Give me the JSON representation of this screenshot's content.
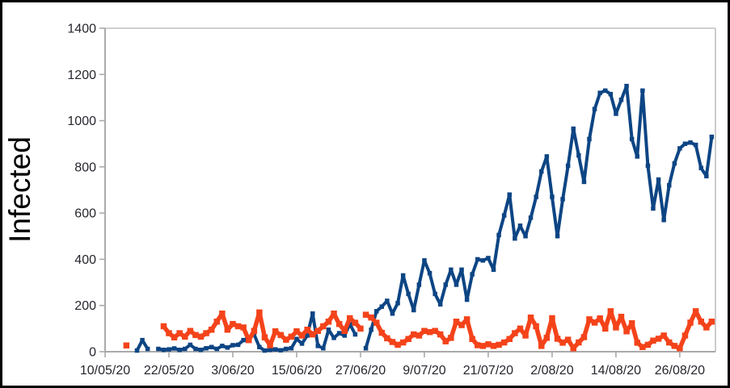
{
  "figure": {
    "background": "#ffffff",
    "border_color": "#000000"
  },
  "chart_data": {
    "type": "line",
    "title": "",
    "xlabel": "",
    "ylabel": "Infected",
    "ylim": [
      0,
      1400
    ],
    "grid": "top border line only, no interior gridlines",
    "legend": "none",
    "x_unit": "date (daily points), day index measured from 10/05/20",
    "y_ticks": [
      0,
      200,
      400,
      600,
      800,
      1000,
      1200,
      1400
    ],
    "x_ticks": [
      {
        "day": 0,
        "label": "10/05/20"
      },
      {
        "day": 12,
        "label": "22/05/20"
      },
      {
        "day": 24,
        "label": "3/06/20"
      },
      {
        "day": 36,
        "label": "15/06/20"
      },
      {
        "day": 48,
        "label": "27/06/20"
      },
      {
        "day": 60,
        "label": "9/07/20"
      },
      {
        "day": 72,
        "label": "21/07/20"
      },
      {
        "day": 84,
        "label": "2/08/20"
      },
      {
        "day": 96,
        "label": "14/08/20"
      },
      {
        "day": 108,
        "label": "26/08/20"
      }
    ],
    "x_domain_days": [
      0,
      114.7
    ],
    "series": [
      {
        "name": "series-blue",
        "color": "#0d4584",
        "line_width": 4,
        "marker_size": 5.5,
        "segments": [
          [
            [
              6,
              5
            ],
            [
              7,
              50
            ],
            [
              8,
              12
            ]
          ],
          [
            [
              10,
              12
            ],
            [
              11,
              8
            ],
            [
              12,
              10
            ],
            [
              13,
              14
            ],
            [
              14,
              8
            ],
            [
              15,
              12
            ],
            [
              16,
              30
            ],
            [
              17,
              12
            ],
            [
              18,
              8
            ],
            [
              19,
              15
            ],
            [
              20,
              20
            ],
            [
              21,
              12
            ],
            [
              22,
              25
            ],
            [
              23,
              18
            ],
            [
              24,
              28
            ],
            [
              25,
              30
            ],
            [
              26,
              50
            ],
            [
              27,
              60
            ],
            [
              28,
              75
            ],
            [
              29,
              20
            ],
            [
              30,
              5
            ],
            [
              31,
              8
            ],
            [
              32,
              10
            ],
            [
              33,
              6
            ],
            [
              34,
              12
            ],
            [
              35,
              15
            ],
            [
              36,
              55
            ],
            [
              37,
              35
            ],
            [
              38,
              70
            ],
            [
              39,
              165
            ],
            [
              40,
              25
            ],
            [
              41,
              15
            ],
            [
              42,
              95
            ],
            [
              43,
              60
            ],
            [
              44,
              80
            ],
            [
              45,
              70
            ],
            [
              46,
              120
            ],
            [
              47,
              75
            ]
          ],
          [
            [
              49,
              15
            ],
            [
              50,
              95
            ],
            [
              51,
              175
            ],
            [
              52,
              195
            ],
            [
              53,
              220
            ],
            [
              54,
              165
            ],
            [
              55,
              210
            ],
            [
              56,
              330
            ],
            [
              57,
              250
            ],
            [
              58,
              180
            ],
            [
              59,
              290
            ],
            [
              60,
              395
            ],
            [
              61,
              340
            ],
            [
              62,
              250
            ],
            [
              63,
              205
            ],
            [
              64,
              290
            ],
            [
              65,
              355
            ],
            [
              66,
              290
            ],
            [
              67,
              355
            ],
            [
              68,
              225
            ],
            [
              69,
              335
            ],
            [
              70,
              400
            ],
            [
              71,
              395
            ],
            [
              72,
              405
            ],
            [
              73,
              355
            ],
            [
              74,
              505
            ],
            [
              75,
              590
            ],
            [
              76,
              680
            ],
            [
              77,
              490
            ],
            [
              78,
              545
            ],
            [
              79,
              500
            ],
            [
              80,
              580
            ],
            [
              81,
              670
            ],
            [
              82,
              780
            ],
            [
              83,
              845
            ],
            [
              84,
              670
            ],
            [
              85,
              500
            ],
            [
              86,
              660
            ],
            [
              87,
              805
            ],
            [
              88,
              965
            ],
            [
              89,
              850
            ],
            [
              90,
              735
            ],
            [
              91,
              920
            ],
            [
              92,
              1050
            ],
            [
              93,
              1120
            ],
            [
              94,
              1130
            ],
            [
              95,
              1115
            ],
            [
              96,
              1030
            ],
            [
              97,
              1090
            ],
            [
              98,
              1150
            ],
            [
              99,
              920
            ],
            [
              100,
              845
            ],
            [
              101,
              1130
            ],
            [
              102,
              805
            ],
            [
              103,
              620
            ],
            [
              104,
              745
            ],
            [
              105,
              570
            ],
            [
              106,
              720
            ],
            [
              107,
              815
            ],
            [
              108,
              880
            ],
            [
              109,
              900
            ],
            [
              110,
              905
            ],
            [
              111,
              895
            ],
            [
              112,
              795
            ],
            [
              113,
              760
            ],
            [
              114,
              930
            ]
          ]
        ]
      },
      {
        "name": "series-orange",
        "color": "#f4431a",
        "line_width": 5.5,
        "marker_size": 7.5,
        "segments": [
          [
            [
              4,
              27
            ]
          ],
          [
            [
              11,
              110
            ],
            [
              12,
              80
            ],
            [
              13,
              62
            ],
            [
              14,
              80
            ],
            [
              15,
              65
            ],
            [
              16,
              90
            ],
            [
              17,
              72
            ],
            [
              18,
              65
            ],
            [
              19,
              80
            ],
            [
              20,
              95
            ],
            [
              21,
              130
            ],
            [
              22,
              165
            ],
            [
              23,
              95
            ],
            [
              24,
              120
            ],
            [
              25,
              110
            ],
            [
              26,
              105
            ],
            [
              27,
              50
            ],
            [
              28,
              90
            ],
            [
              29,
              170
            ],
            [
              30,
              62
            ],
            [
              31,
              28
            ],
            [
              32,
              88
            ],
            [
              33,
              72
            ],
            [
              34,
              52
            ],
            [
              35,
              65
            ],
            [
              36,
              88
            ],
            [
              37,
              70
            ],
            [
              38,
              95
            ],
            [
              39,
              75
            ],
            [
              40,
              90
            ],
            [
              41,
              110
            ],
            [
              42,
              130
            ],
            [
              43,
              165
            ],
            [
              44,
              120
            ],
            [
              45,
              90
            ],
            [
              46,
              145
            ],
            [
              47,
              125
            ],
            [
              48,
              100
            ]
          ],
          [
            [
              49,
              160
            ],
            [
              50,
              148
            ],
            [
              51,
              125
            ],
            [
              52,
              82
            ],
            [
              53,
              58
            ],
            [
              54,
              42
            ],
            [
              55,
              30
            ],
            [
              56,
              40
            ],
            [
              57,
              55
            ],
            [
              58,
              75
            ],
            [
              59,
              70
            ],
            [
              60,
              90
            ],
            [
              61,
              85
            ],
            [
              62,
              90
            ],
            [
              63,
              75
            ],
            [
              64,
              45
            ],
            [
              65,
              60
            ],
            [
              66,
              130
            ],
            [
              67,
              115
            ],
            [
              68,
              140
            ],
            [
              69,
              55
            ],
            [
              70,
              28
            ],
            [
              71,
              25
            ],
            [
              72,
              32
            ],
            [
              73,
              25
            ],
            [
              74,
              30
            ],
            [
              75,
              40
            ],
            [
              76,
              55
            ],
            [
              77,
              80
            ],
            [
              78,
              100
            ],
            [
              79,
              70
            ],
            [
              80,
              148
            ],
            [
              81,
              110
            ],
            [
              82,
              25
            ],
            [
              83,
              60
            ],
            [
              84,
              145
            ],
            [
              85,
              56
            ],
            [
              86,
              39
            ],
            [
              87,
              52
            ],
            [
              88,
              15
            ],
            [
              89,
              40
            ],
            [
              90,
              63
            ],
            [
              91,
              140
            ],
            [
              92,
              126
            ],
            [
              93,
              144
            ],
            [
              94,
              100
            ],
            [
              95,
              175
            ],
            [
              96,
              105
            ],
            [
              97,
              151
            ],
            [
              98,
              88
            ],
            [
              99,
              123
            ],
            [
              100,
              39
            ],
            [
              101,
              20
            ],
            [
              102,
              30
            ],
            [
              103,
              48
            ],
            [
              104,
              56
            ],
            [
              105,
              70
            ],
            [
              106,
              40
            ],
            [
              107,
              25
            ],
            [
              108,
              15
            ],
            [
              109,
              70
            ],
            [
              110,
              126
            ],
            [
              111,
              175
            ],
            [
              112,
              130
            ],
            [
              113,
              105
            ],
            [
              114,
              130
            ]
          ]
        ]
      }
    ]
  }
}
